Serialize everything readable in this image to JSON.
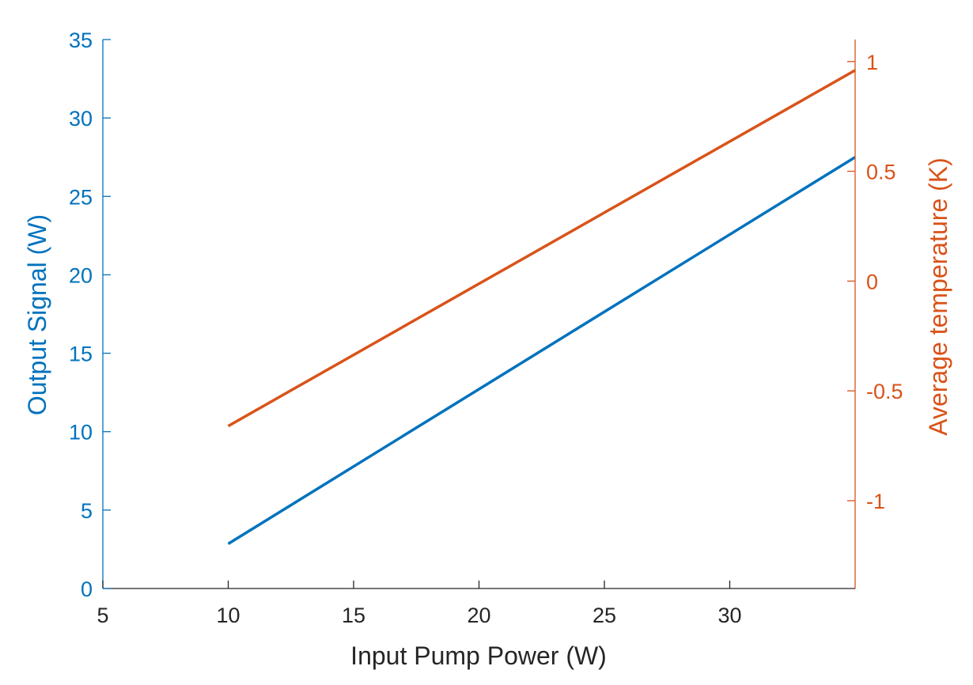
{
  "chart_data": {
    "type": "line",
    "title": "",
    "xlabel": "Input Pump Power (W)",
    "ylabel_left": "Output Signal (W)",
    "ylabel_right": "Average temperature (K)",
    "xlim": [
      5,
      35
    ],
    "ylim_left": [
      0,
      35
    ],
    "ylim_right": [
      -1.4,
      1.1
    ],
    "x_ticks": [
      5,
      10,
      15,
      20,
      25,
      30
    ],
    "y_left_ticks": [
      0,
      5,
      10,
      15,
      20,
      25,
      30,
      35
    ],
    "y_right_ticks": [
      -1,
      -0.5,
      0,
      0.5,
      1
    ],
    "grid": false,
    "legend": "none",
    "series": [
      {
        "axis": "left",
        "color": "#0072bd",
        "x": [
          10,
          35
        ],
        "y": [
          2.85,
          27.5
        ]
      },
      {
        "axis": "right",
        "color": "#d95319",
        "x": [
          10,
          35
        ],
        "y": [
          -0.66,
          0.96
        ]
      }
    ],
    "colors": {
      "left_axis": "#0072bd",
      "right_axis": "#d95319",
      "bottom_axis": "#262626"
    }
  }
}
